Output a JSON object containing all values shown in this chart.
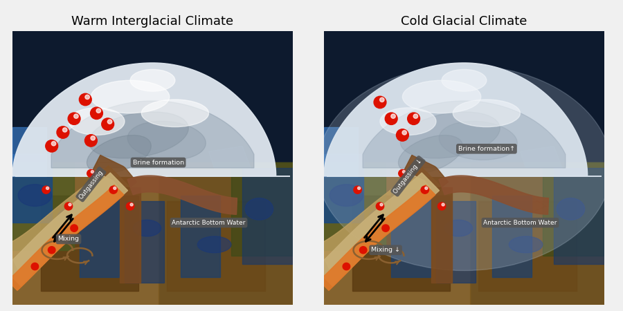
{
  "title_left": "Warm Interglacial Climate",
  "title_right": "Cold Glacial Climate",
  "title_fontsize": 13,
  "bg_color": "#f0f0f0",
  "labels": {
    "brine_left": "Brine formation",
    "brine_right": "Brine formation↑",
    "outgassing_left": "Outgassing",
    "outgassing_right": "Outgassing ↓",
    "mixing_left": "Mixing",
    "mixing_right": "Mixing ↓",
    "abw": "Antarctic Bottom Water"
  },
  "red_dot_color": "#dd1100",
  "navy": "#0d1a2e",
  "ocean_blue": "#1a3a6a",
  "ice_white": "#dde8ee",
  "ice_gray": "#aabbcc",
  "brown1": "#7a4a20",
  "brown2": "#5a3010",
  "tan": "#c8b078",
  "orange": "#e07828",
  "arrow_black": "#111111"
}
